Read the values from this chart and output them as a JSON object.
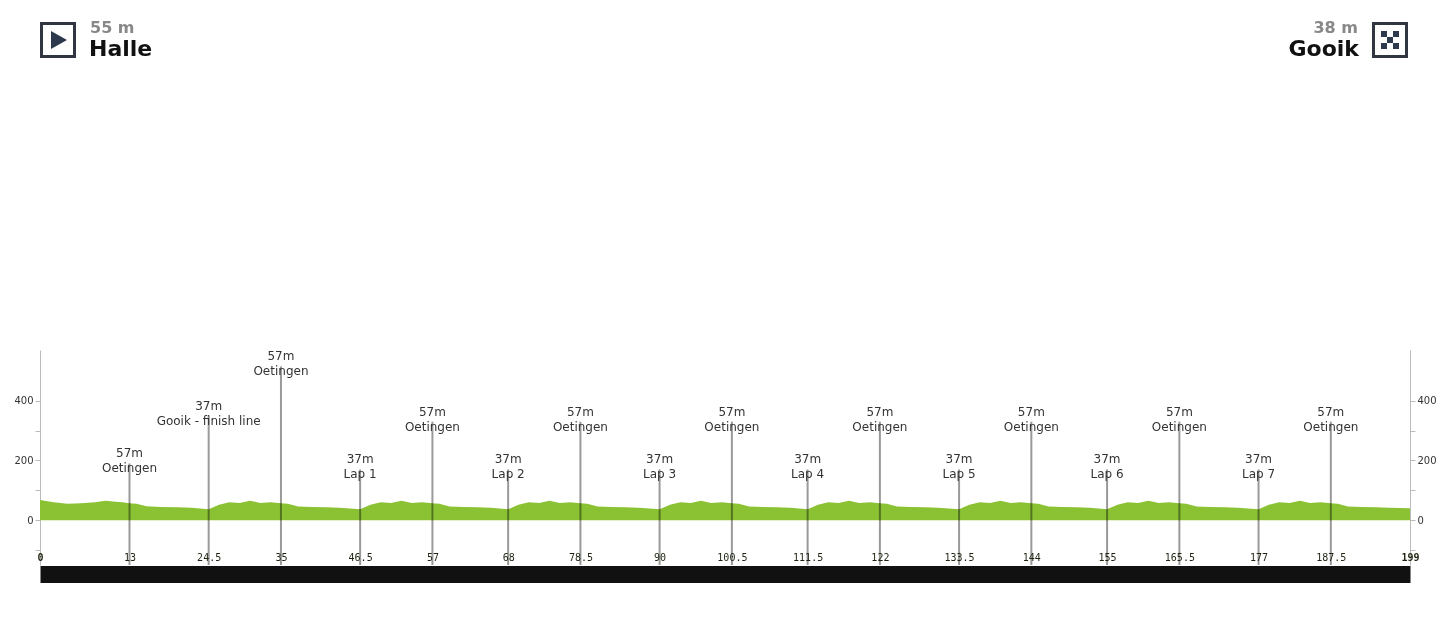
{
  "chart_data": {
    "type": "area",
    "annotations": [
      "55 m",
      "Halle",
      "38 m",
      "Gooik"
    ],
    "ref_lines": [
      {
        "axis": "x",
        "value": 13,
        "label": "57m\nOetingen"
      },
      {
        "axis": "x",
        "value": 24.5,
        "label": "37m\nGooik - finish line"
      },
      {
        "axis": "x",
        "value": 35,
        "label": "57m\nOetingen"
      },
      {
        "axis": "x",
        "value": 46.5,
        "label": "37m\nLap 1"
      },
      {
        "axis": "x",
        "value": 57,
        "label": "57m\nOetingen"
      },
      {
        "axis": "x",
        "value": 68,
        "label": "37m\nLap 2"
      },
      {
        "axis": "x",
        "value": 78.5,
        "label": "57m\nOetingen"
      },
      {
        "axis": "x",
        "value": 90,
        "label": "37m\nLap 3"
      },
      {
        "axis": "x",
        "value": 100.5,
        "label": "57m\nOetingen"
      },
      {
        "axis": "x",
        "value": 111.5,
        "label": "37m\nLap 4"
      },
      {
        "axis": "x",
        "value": 122,
        "label": "57m\nOetingen"
      },
      {
        "axis": "x",
        "value": 133.5,
        "label": "37m\nLap 5"
      },
      {
        "axis": "x",
        "value": 144,
        "label": "57m\nOetingen"
      },
      {
        "axis": "x",
        "value": 155,
        "label": "37m\nLap 6"
      },
      {
        "axis": "x",
        "value": 165.5,
        "label": "57m\nOetingen"
      },
      {
        "axis": "x",
        "value": 177,
        "label": "37m\nLap 7"
      },
      {
        "axis": "x",
        "value": 187.5,
        "label": "57m\nOetingen"
      }
    ],
    "x": [
      0,
      2,
      4,
      6,
      8,
      9.5,
      11,
      12,
      13,
      14,
      15.5,
      17.5,
      20,
      22,
      24.5,
      26,
      27.5,
      29,
      30.5,
      32,
      33.5,
      35,
      36,
      37.5,
      39.5,
      41.5,
      43.5,
      46.5,
      48,
      49.5,
      51,
      52.5,
      54,
      55.5,
      57,
      58,
      59.5,
      61.5,
      63.5,
      65.5,
      68,
      69.5,
      71,
      72.5,
      74,
      75.5,
      77,
      78.5,
      79.5,
      81,
      83,
      85,
      87,
      90,
      91.5,
      93,
      94.5,
      96,
      97.5,
      99,
      100.5,
      101.5,
      103,
      105,
      107,
      109,
      111.5,
      113,
      114.5,
      116,
      117.5,
      119,
      120.5,
      122,
      123,
      124.5,
      126.5,
      128.5,
      130.5,
      133.5,
      135,
      136.5,
      138,
      139.5,
      141,
      142.5,
      144,
      145,
      146.5,
      148.5,
      150.5,
      152.5,
      155,
      156.5,
      158,
      159.5,
      161,
      162.5,
      164,
      165.5,
      166.5,
      168,
      170,
      172,
      174,
      177,
      178.5,
      180,
      181.5,
      183,
      184.5,
      186,
      187.5,
      188.5,
      190,
      192,
      194,
      196,
      199
    ],
    "series": [
      {
        "color": "#8bc234",
        "values": [
          68,
          60,
          55,
          57,
          60,
          65,
          62,
          60,
          57,
          55,
          47,
          44,
          43,
          42,
          37,
          52,
          60,
          58,
          65,
          58,
          60,
          57,
          55,
          46,
          44,
          43,
          42,
          37,
          52,
          60,
          58,
          65,
          58,
          60,
          57,
          55,
          46,
          44,
          43,
          42,
          37,
          52,
          60,
          58,
          65,
          58,
          60,
          57,
          55,
          46,
          44,
          43,
          42,
          37,
          52,
          60,
          58,
          65,
          58,
          60,
          57,
          55,
          46,
          44,
          43,
          42,
          37,
          52,
          60,
          58,
          65,
          58,
          60,
          57,
          55,
          46,
          44,
          43,
          42,
          37,
          52,
          60,
          58,
          65,
          58,
          60,
          57,
          55,
          46,
          44,
          43,
          42,
          37,
          52,
          60,
          58,
          65,
          58,
          60,
          57,
          55,
          46,
          44,
          43,
          42,
          37,
          52,
          60,
          58,
          65,
          58,
          60,
          57,
          55,
          46,
          44,
          43,
          42,
          40
        ]
      }
    ],
    "xlim": [
      0,
      199
    ],
    "xticks": [
      0,
      13,
      24.5,
      35,
      46.5,
      57,
      68,
      78.5,
      90,
      100.5,
      111.5,
      122,
      133.5,
      144,
      155,
      165.5,
      177,
      187.5,
      199
    ],
    "ylim": [
      -150,
      570
    ],
    "yticks": [
      {
        "value": -100,
        "label": null
      },
      0,
      {
        "value": 100,
        "label": null
      },
      200,
      {
        "value": 300,
        "label": null
      },
      400
    ],
    "y2lim": [
      -150,
      570
    ],
    "y2ticks": [
      {
        "value": -100,
        "label": null
      },
      0,
      {
        "value": 100,
        "label": null
      },
      200,
      {
        "value": 300,
        "label": null
      },
      400
    ]
  }
}
